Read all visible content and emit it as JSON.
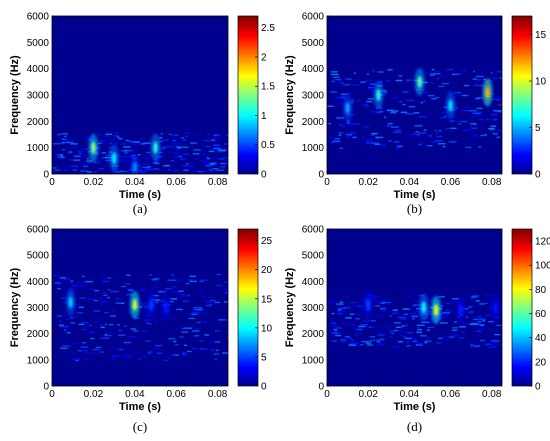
{
  "chart_data": [
    {
      "type": "heatmap",
      "caption": "(a)",
      "xlabel": "Time (s)",
      "ylabel": "Frequency (Hz)",
      "xlim": [
        0,
        0.085
      ],
      "ylim": [
        0,
        6000
      ],
      "xticks": [
        "0",
        "0.02",
        "0.04",
        "0.06",
        "0.08"
      ],
      "yticks": [
        "0",
        "1000",
        "2000",
        "3000",
        "4000",
        "5000",
        "6000"
      ],
      "colorbar": {
        "min": 0,
        "max": 2.7,
        "ticks": [
          "0",
          "0.5",
          "1",
          "1.5",
          "2",
          "2.5"
        ]
      },
      "colormap": "jet",
      "energy_band_hz": [
        100,
        1600
      ],
      "hotspots": [
        {
          "t": 0.02,
          "f": 1000,
          "value": 1.4
        },
        {
          "t": 0.05,
          "f": 1000,
          "value": 1.1
        },
        {
          "t": 0.03,
          "f": 600,
          "value": 1.0
        },
        {
          "t": 0.04,
          "f": 250,
          "value": 0.7
        }
      ]
    },
    {
      "type": "heatmap",
      "caption": "(b)",
      "xlabel": "Time (s)",
      "ylabel": "Frequency (Hz)",
      "xlim": [
        0,
        0.085
      ],
      "ylim": [
        0,
        6000
      ],
      "xticks": [
        "0",
        "0.02",
        "0.04",
        "0.06",
        "0.08"
      ],
      "yticks": [
        "0",
        "1000",
        "2000",
        "3000",
        "4000",
        "5000",
        "6000"
      ],
      "colorbar": {
        "min": 0,
        "max": 17,
        "ticks": [
          "0",
          "5",
          "10",
          "15"
        ]
      },
      "colormap": "jet",
      "energy_band_hz": [
        1000,
        4000
      ],
      "hotspots": [
        {
          "t": 0.078,
          "f": 3100,
          "value": 12
        },
        {
          "t": 0.045,
          "f": 3500,
          "value": 8
        },
        {
          "t": 0.025,
          "f": 3000,
          "value": 7
        },
        {
          "t": 0.06,
          "f": 2600,
          "value": 6
        },
        {
          "t": 0.01,
          "f": 2500,
          "value": 5
        }
      ]
    },
    {
      "type": "heatmap",
      "caption": "(c)",
      "xlabel": "Time (s)",
      "ylabel": "Frequency (Hz)",
      "xlim": [
        0,
        0.085
      ],
      "ylim": [
        0,
        6000
      ],
      "xticks": [
        "0",
        "0.02",
        "0.04",
        "0.06",
        "0.08"
      ],
      "yticks": [
        "0",
        "1000",
        "2000",
        "3000",
        "4000",
        "5000",
        "6000"
      ],
      "colorbar": {
        "min": 0,
        "max": 27,
        "ticks": [
          "0",
          "5",
          "10",
          "15",
          "20",
          "25"
        ]
      },
      "colormap": "jet",
      "energy_band_hz": [
        1000,
        4300
      ],
      "hotspots": [
        {
          "t": 0.04,
          "f": 3100,
          "value": 16
        },
        {
          "t": 0.009,
          "f": 3200,
          "value": 9
        },
        {
          "t": 0.048,
          "f": 3100,
          "value": 5
        },
        {
          "t": 0.055,
          "f": 3000,
          "value": 4
        }
      ]
    },
    {
      "type": "heatmap",
      "caption": "(d)",
      "xlabel": "Time (s)",
      "ylabel": "Frequency (Hz)",
      "xlim": [
        0,
        0.085
      ],
      "ylim": [
        0,
        6000
      ],
      "xticks": [
        "0",
        "0.02",
        "0.04",
        "0.06",
        "0.08"
      ],
      "yticks": [
        "0",
        "1000",
        "2000",
        "3000",
        "4000",
        "5000",
        "6000"
      ],
      "colorbar": {
        "min": 0,
        "max": 130,
        "ticks": [
          "0",
          "20",
          "40",
          "60",
          "80",
          "100",
          "120"
        ]
      },
      "colormap": "jet",
      "energy_band_hz": [
        1500,
        3500
      ],
      "hotspots": [
        {
          "t": 0.053,
          "f": 2900,
          "value": 80
        },
        {
          "t": 0.047,
          "f": 3000,
          "value": 50
        },
        {
          "t": 0.02,
          "f": 3100,
          "value": 25
        },
        {
          "t": 0.065,
          "f": 2900,
          "value": 20
        },
        {
          "t": 0.082,
          "f": 3000,
          "value": 18
        }
      ]
    }
  ]
}
